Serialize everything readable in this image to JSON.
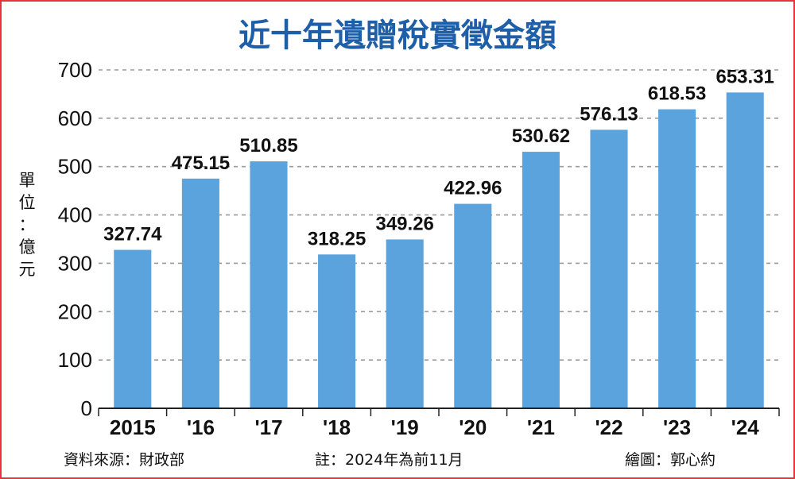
{
  "chart_data": {
    "type": "bar",
    "title": "近十年遺贈稅實徵金額",
    "ylabel": "單位：億元",
    "categories": [
      "2015",
      "'16",
      "'17",
      "'18",
      "'19",
      "'20",
      "'21",
      "'22",
      "'23",
      "'24"
    ],
    "values": [
      327.74,
      475.15,
      510.85,
      318.25,
      349.26,
      422.96,
      530.62,
      576.13,
      618.53,
      653.31
    ],
    "value_labels": [
      "327.74",
      "475.15",
      "510.85",
      "318.25",
      "349.26",
      "422.96",
      "530.62",
      "576.13",
      "618.53",
      "653.31"
    ],
    "ylim": [
      0,
      700
    ],
    "yticks": [
      "0",
      "100",
      "200",
      "300",
      "400",
      "500",
      "600",
      "700"
    ],
    "grid": true,
    "colors": {
      "bar": "#5ba3dc",
      "title": "#1f5fa8",
      "border": "#e8323c",
      "grid": "#9a9a9a"
    }
  },
  "footer": {
    "source": "資料來源：財政部",
    "note": "註：2024年為前11月",
    "credit": "繪圖：郭心約"
  }
}
